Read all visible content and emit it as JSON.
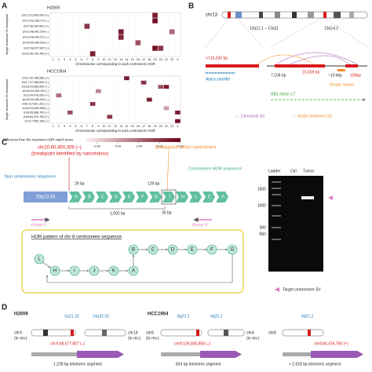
{
  "panels": {
    "a": "A",
    "b": "B",
    "c": "C",
    "d": "D"
  },
  "heatmap": {
    "x_label": "Chromosome corresponding to each centromeric HOR",
    "y_label": "Single breakend SV breakpoint",
    "columns": [
      "1",
      "2",
      "3",
      "4",
      "5",
      "6",
      "7",
      "8",
      "9",
      "10",
      "11",
      "12",
      "13",
      "14",
      "15",
      "16",
      "17",
      "18",
      "19",
      "20",
      "21",
      "22",
      "X"
    ],
    "panels": [
      {
        "title": "H2009",
        "rows": [
          {
            "label": "chr1:121,509,003 (+)",
            "color": "#222222",
            "values": [
              null,
              null,
              null,
              null,
              null,
              null,
              null,
              null,
              null,
              null,
              null,
              null,
              null,
              null,
              null,
              null,
              null,
              null,
              -0.01,
              null,
              null,
              null,
              null
            ]
          },
          {
            "label": "chr1:143,196,170 (-)",
            "color": "#222222",
            "values": [
              null,
              null,
              null,
              null,
              null,
              null,
              null,
              null,
              null,
              null,
              null,
              null,
              null,
              null,
              null,
              null,
              null,
              null,
              -0.005,
              null,
              null,
              null,
              null
            ]
          },
          {
            "label": "chr7:58,160,651 (+)",
            "color": "#222222",
            "values": [
              null,
              null,
              null,
              null,
              null,
              null,
              -0.02,
              null,
              null,
              null,
              null,
              null,
              null,
              null,
              null,
              null,
              null,
              null,
              null,
              null,
              null,
              null,
              null
            ]
          },
          {
            "label": "chr13:48,402,264 (-)",
            "color": "#222222",
            "values": [
              null,
              null,
              null,
              null,
              null,
              null,
              null,
              null,
              null,
              null,
              null,
              null,
              -0.01,
              null,
              null,
              null,
              null,
              null,
              null,
              null,
              null,
              -0.04,
              null
            ]
          },
          {
            "label": "chr13:48,400,371 (-)",
            "color": "#222222",
            "values": [
              null,
              null,
              null,
              null,
              null,
              null,
              null,
              null,
              null,
              null,
              null,
              null,
              -0.015,
              null,
              null,
              null,
              null,
              null,
              null,
              null,
              null,
              null,
              null
            ]
          },
          {
            "label": "chr20:60,450,309 (-)",
            "color": "#d7191c",
            "values": [
              null,
              null,
              null,
              null,
              null,
              null,
              null,
              null,
              null,
              null,
              null,
              null,
              null,
              null,
              null,
              -0.03,
              null,
              null,
              null,
              null,
              null,
              null,
              null
            ]
          },
          {
            "label": "chrX:98,677,807 (-)",
            "color": "#d7191c",
            "values": [
              null,
              null,
              null,
              null,
              null,
              null,
              null,
              null,
              null,
              null,
              null,
              null,
              null,
              null,
              null,
              null,
              null,
              null,
              -0.005,
              -0.02,
              null,
              null,
              null
            ]
          },
          {
            "label": "chr16:48,743,760 (+)",
            "color": "#d7191c",
            "values": [
              null,
              null,
              null,
              null,
              null,
              null,
              null,
              -0.01,
              null,
              null,
              null,
              null,
              null,
              null,
              null,
              null,
              null,
              null,
              null,
              null,
              null,
              null,
              null
            ]
          }
        ]
      },
      {
        "title": "HCC1954",
        "rows": [
          {
            "label": "chr11:92,186,556 (+)",
            "color": "#d7191c",
            "values": [
              null,
              null,
              null,
              null,
              null,
              null,
              null,
              null,
              null,
              null,
              null,
              null,
              null,
              -0.01,
              null,
              null,
              null,
              null,
              null,
              null,
              null,
              null,
              null
            ]
          },
          {
            "label": "chr17:27,288,600 (+)",
            "color": "#d7191c",
            "values": [
              null,
              null,
              null,
              null,
              null,
              null,
              null,
              null,
              null,
              null,
              null,
              null,
              null,
              null,
              null,
              null,
              -0.02,
              null,
              null,
              null,
              null,
              null,
              null
            ]
          },
          {
            "label": "chr18:20,983,840 (+)",
            "color": "#d7191c",
            "values": [
              null,
              null,
              null,
              null,
              null,
              null,
              null,
              null,
              null,
              null,
              null,
              null,
              null,
              null,
              null,
              null,
              null,
              null,
              null,
              -0.03,
              -0.01,
              null,
              null
            ]
          },
          {
            "label": "chr19:24,453,330 (-)",
            "color": "#222222",
            "values": [
              null,
              null,
              null,
              null,
              null,
              null,
              null,
              null,
              -0.05,
              null,
              null,
              null,
              null,
              null,
              null,
              null,
              null,
              null,
              null,
              null,
              null,
              null,
              null
            ]
          },
          {
            "label": "chr2:94,475,000 (+)",
            "color": "#222222",
            "values": [
              null,
              -0.04,
              null,
              null,
              null,
              null,
              null,
              null,
              null,
              null,
              null,
              null,
              null,
              null,
              null,
              null,
              null,
              null,
              null,
              null,
              null,
              null,
              null
            ]
          },
          {
            "label": "chr20:30,180,000 (-)",
            "color": "#d7191c",
            "values": [
              null,
              null,
              null,
              null,
              null,
              null,
              null,
              null,
              null,
              null,
              null,
              null,
              null,
              null,
              null,
              null,
              null,
              -0.01,
              null,
              null,
              null,
              null,
              null
            ]
          },
          {
            "label": "chr8:117,801,301 (+)",
            "color": "#d7191c",
            "values": [
              null,
              null,
              null,
              null,
              null,
              null,
              null,
              -0.02,
              null,
              null,
              null,
              null,
              null,
              null,
              null,
              null,
              null,
              null,
              null,
              null,
              null,
              null,
              null
            ]
          },
          {
            "label": "chr8:109,800,858 (-)",
            "color": "#d7191c",
            "values": [
              null,
              null,
              null,
              null,
              null,
              null,
              null,
              null,
              null,
              null,
              null,
              null,
              null,
              null,
              null,
              null,
              null,
              null,
              null,
              null,
              -0.06,
              null,
              null
            ]
          },
          {
            "label": "chr8:45,688,700 (+)",
            "color": "#222222",
            "values": [
              null,
              null,
              null,
              -0.03,
              null,
              null,
              null,
              null,
              null,
              null,
              null,
              null,
              null,
              null,
              null,
              null,
              null,
              null,
              null,
              null,
              null,
              null,
              -0.01
            ]
          },
          {
            "label": "chr8:84,476,760 (+)",
            "color": "#d7191c",
            "values": [
              null,
              null,
              null,
              null,
              null,
              null,
              null,
              null,
              null,
              null,
              -0.02,
              null,
              null,
              null,
              null,
              null,
              null,
              null,
              null,
              null,
              null,
              null,
              null
            ]
          },
          {
            "label": "chrX:7,559,196 (+)",
            "color": "#d7191c",
            "values": [
              null,
              null,
              null,
              null,
              null,
              null,
              null,
              null,
              null,
              null,
              null,
              null,
              null,
              null,
              null,
              null,
              null,
              null,
              null,
              null,
              null,
              null,
              -0.005
            ]
          }
        ]
      }
    ],
    "colorbar": {
      "label": "Difference from the maximum HOR match score",
      "lim": [
        -0.09,
        0
      ],
      "ticks": [
        -0.08,
        -0.06,
        -0.04,
        -0.02,
        {
          "value": 0,
          "label": "0.00"
        }
      ]
    }
  },
  "region": {
    "chrom": "chr13",
    "band1": "13q11.1 – 13q11",
    "band2": "13q14.2",
    "left_len": ">=15,242 bp",
    "len1": "7,106 bp",
    "len2": "15,509 bp",
    "len3": "~10 kbp",
    "len4": "105bp",
    "alpha": "Alpha satellite",
    "simple": "Simple repeat",
    "intron": "RB1 Intron 17",
    "legend_canonical": "– : Canonical SV",
    "legend_single": "– : Single breakend SV"
  },
  "validation": {
    "breakpoint": "chr20:60,450,309 (–)",
    "breakpoint_note": "(breakpoint identified by nanomonsv)",
    "within": "Breakpoint within centromere",
    "non_centromere": "Non centromere sequence",
    "hor_sequence": "Centromere HOR sequence",
    "gap1": "29 bp",
    "gap2": "129 bp",
    "start": "20q13.33",
    "blocks": [
      "A",
      "B",
      "C",
      "D",
      "E",
      "F",
      "G",
      "I",
      "H",
      "L",
      "C",
      "A"
    ],
    "span": "1,002 bp",
    "gap3": "35 bp",
    "primer_f": "Primer F",
    "primer_r": "Primer R",
    "hor_title": "HOR pattern of chr 8 centromere sequence",
    "nodes": [
      "H",
      "I",
      "J",
      "K",
      "A",
      "B",
      "C",
      "D",
      "E",
      "F",
      "G",
      "L"
    ]
  },
  "gel": {
    "ladder": "Ladder",
    "ctrl": "Ctrl",
    "tumor": "Tumor",
    "s1500": "1500",
    "s1000": "1000",
    "s500": "500",
    "unit": "(bp)",
    "target": "Target centromere SV"
  },
  "telomere": {
    "h2009": {
      "title": "H2009",
      "band1": "Xq21.33",
      "band2": "14q32.33",
      "chr1": "chrX",
      "chr2": "chr14",
      "rev": "(in rev.)",
      "bp": "chrX:98,677,807 (–)",
      "seg": "1,228 bp telomeric segment"
    },
    "hcc1": {
      "title": "HCC1954",
      "band1": "8q23.2",
      "band2": "4q25.2",
      "chr1": "chr8",
      "chr2": "chr4",
      "rev": "(in rev.)",
      "bp": "chr8:109,800,858 (–)",
      "seg": "824 bp telomeric segment"
    },
    "hcc2": {
      "band1": "8q21.2",
      "chr1": "chr8",
      "bp": "chr8:84,476,760 (+)",
      "seg": "> 2,618 bp telomeric segment"
    }
  }
}
